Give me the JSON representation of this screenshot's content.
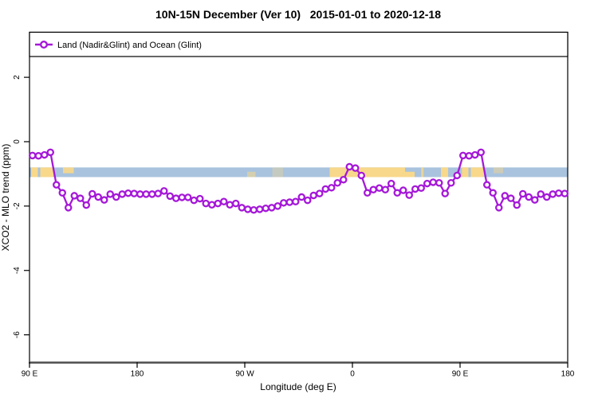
{
  "header": {
    "title": "10N-15N December (Ver 10)   2015-01-01 to 2020-12-18"
  },
  "legend": {
    "label": "Land (Nadir&Glint) and Ocean (Glint)",
    "marker": "open-circle-on-line"
  },
  "chart_data": {
    "type": "line",
    "title": "10N-15N December (Ver 10)   2015-01-01 to 2020-12-18",
    "xlabel": "Longitude (deg E)",
    "ylabel": "XCO2 - MLO trend (ppm)",
    "xlim": [
      90,
      540
    ],
    "ylim": [
      -6.85,
      3.4
    ],
    "grid": false,
    "legend_position": "top",
    "x_ticks": [
      {
        "lon": 90,
        "label": "90 E"
      },
      {
        "lon": 180,
        "label": "180"
      },
      {
        "lon": 270,
        "label": "90 W"
      },
      {
        "lon": 360,
        "label": "0"
      },
      {
        "lon": 450,
        "label": "90 E"
      },
      {
        "lon": 540,
        "label": "180"
      }
    ],
    "y_ticks": [
      {
        "v": 2,
        "label": "2"
      },
      {
        "v": 0,
        "label": "0"
      },
      {
        "v": -2,
        "label": "-2"
      },
      {
        "v": -4,
        "label": "-4"
      },
      {
        "v": -6,
        "label": "-6"
      }
    ],
    "series": [
      {
        "name": "Land (Nadir&Glint) and Ocean (Glint)",
        "x_start": 92.5,
        "x_step": 5,
        "values": [
          -0.43,
          -0.44,
          -0.41,
          -0.33,
          -1.34,
          -1.59,
          -2.05,
          -1.68,
          -1.76,
          -1.97,
          -1.62,
          -1.72,
          -1.81,
          -1.63,
          -1.72,
          -1.63,
          -1.6,
          -1.61,
          -1.63,
          -1.63,
          -1.63,
          -1.61,
          -1.53,
          -1.69,
          -1.76,
          -1.73,
          -1.73,
          -1.82,
          -1.77,
          -1.92,
          -1.96,
          -1.92,
          -1.86,
          -1.96,
          -1.92,
          -2.05,
          -2.1,
          -2.12,
          -2.1,
          -2.07,
          -2.05,
          -2.0,
          -1.9,
          -1.88,
          -1.86,
          -1.72,
          -1.82,
          -1.67,
          -1.61,
          -1.47,
          -1.43,
          -1.28,
          -1.18,
          -0.78,
          -0.82,
          -1.05,
          -1.59,
          -1.49,
          -1.44,
          -1.49,
          -1.3,
          -1.59,
          -1.51,
          -1.66,
          -1.47,
          -1.44,
          -1.3,
          -1.26,
          -1.28,
          -1.61,
          -1.28,
          -1.05,
          -0.43,
          -0.44,
          -0.41,
          -0.33,
          -1.34,
          -1.59,
          -2.05,
          -1.68,
          -1.76,
          -1.97,
          -1.62,
          -1.72,
          -1.81,
          -1.63,
          -1.72,
          -1.63,
          -1.6,
          -1.61
        ]
      }
    ],
    "reference_band": {
      "description": "ocean band with land patches (map strip)",
      "y_from": -0.8,
      "y_to": -1.1,
      "land_patches": [
        {
          "from": 91.5,
          "to": 97,
          "align": "full",
          "opacity": 1
        },
        {
          "from": 99,
          "to": 110,
          "align": "full",
          "opacity": 1
        },
        {
          "from": 118,
          "to": 127,
          "align": "top",
          "opacity": 0.9
        },
        {
          "from": 272,
          "to": 279,
          "align": "bottom",
          "opacity": 0.55
        },
        {
          "from": 293,
          "to": 302,
          "align": "full",
          "opacity": 0.35
        },
        {
          "from": 341,
          "to": 404,
          "align": "full",
          "opacity": 1
        },
        {
          "from": 404,
          "to": 412,
          "align": "bottom",
          "opacity": 1
        },
        {
          "from": 417.5,
          "to": 419.5,
          "align": "full",
          "opacity": 0.8
        },
        {
          "from": 434,
          "to": 440,
          "align": "full",
          "opacity": 1
        },
        {
          "from": 451.5,
          "to": 457,
          "align": "full",
          "opacity": 1
        },
        {
          "from": 459,
          "to": 470,
          "align": "full",
          "opacity": 1
        },
        {
          "from": 478,
          "to": 486,
          "align": "top",
          "opacity": 0.45
        }
      ]
    },
    "colors": {
      "series": "#a518d8",
      "marker_fill": "#ffffff",
      "band_ocean": "#a9c3de",
      "band_land": "#f8d88a",
      "axis": "#000000",
      "baseline": "#4d4d4d"
    }
  }
}
